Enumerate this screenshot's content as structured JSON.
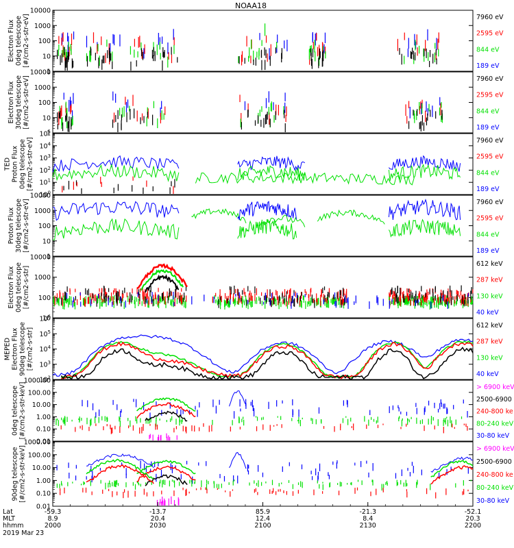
{
  "title": "NOAA18",
  "date_label": "2019 Mar 23",
  "x_axis": {
    "row_labels": [
      "Lat",
      "MLT",
      "hhmm"
    ],
    "ticks": [
      {
        "lat": "-59.3",
        "mlt": "8.9",
        "hhmm": "2000"
      },
      {
        "lat": "-13.7",
        "mlt": "20.4",
        "hhmm": "2030"
      },
      {
        "lat": "85.9",
        "mlt": "12.4",
        "hhmm": "2100"
      },
      {
        "lat": "-21.3",
        "mlt": "8.4",
        "hhmm": "2130"
      },
      {
        "lat": "-52.1",
        "mlt": "20.3",
        "hhmm": "2200"
      }
    ]
  },
  "colors": {
    "black": "#000000",
    "red": "#ff0000",
    "green": "#00e000",
    "blue": "#0000ff",
    "magenta": "#ff00ff"
  },
  "chart_data": [
    {
      "id": "ted-e-0",
      "type": "scatter",
      "ylabel": [
        "Electron Flux",
        "0deg telescope",
        "[#/cm2-s-str-eV]"
      ],
      "y_ticks": [
        "1",
        "10",
        "100",
        "1000",
        "10000"
      ],
      "ylim": [
        1,
        10000
      ],
      "log": true,
      "legend": [
        {
          "label": "7960 eV",
          "color": "black"
        },
        {
          "label": "2595 eV",
          "color": "red"
        },
        {
          "label": "844 eV",
          "color": "green"
        },
        {
          "label": "189 eV",
          "color": "blue"
        }
      ]
    },
    {
      "id": "ted-e-30",
      "type": "scatter",
      "ylabel": [
        "Electron Flux",
        "30deg telescope",
        "[#/cm2-s-str-eV]"
      ],
      "y_ticks": [
        "1",
        "10",
        "100",
        "1000",
        "10000"
      ],
      "ylim": [
        1,
        10000
      ],
      "log": true,
      "legend": [
        {
          "label": "7960 eV",
          "color": "black"
        },
        {
          "label": "2595 eV",
          "color": "red"
        },
        {
          "label": "844 eV",
          "color": "green"
        },
        {
          "label": "189 eV",
          "color": "blue"
        }
      ]
    },
    {
      "id": "ted-p-0",
      "type": "line",
      "ylabel": [
        "TED",
        "Proton Flux",
        "0deg telescope",
        "[#/cm2-s-str-eV]"
      ],
      "y_ticks": [
        "10^0",
        "10^1",
        "10^2",
        "10^3",
        "10^4",
        "10^5"
      ],
      "ylim": [
        1,
        100000
      ],
      "log": true,
      "legend": [
        {
          "label": "7960 eV",
          "color": "black"
        },
        {
          "label": "2595 eV",
          "color": "red"
        },
        {
          "label": "844 eV",
          "color": "green"
        },
        {
          "label": "189 eV",
          "color": "blue"
        }
      ]
    },
    {
      "id": "ted-p-30",
      "type": "line",
      "ylabel": [
        "Proton Flux",
        "30deg telescope",
        "[#/cm2-s-str-eV]"
      ],
      "y_ticks": [
        "1",
        "10",
        "100",
        "1000",
        "10000"
      ],
      "ylim": [
        1,
        10000
      ],
      "log": true,
      "legend": [
        {
          "label": "7960 eV",
          "color": "black"
        },
        {
          "label": "2595 eV",
          "color": "red"
        },
        {
          "label": "844 eV",
          "color": "green"
        },
        {
          "label": "189 eV",
          "color": "blue"
        }
      ]
    },
    {
      "id": "meped-e-0",
      "type": "line",
      "ylabel": [
        "Electron Flux",
        "0deg telescope",
        "[#/cm2-s-str]"
      ],
      "y_ticks": [
        "10",
        "100",
        "1000",
        "10000"
      ],
      "ylim": [
        10,
        10000
      ],
      "log": true,
      "legend": [
        {
          "label": "612 keV",
          "color": "black"
        },
        {
          "label": "287 keV",
          "color": "red"
        },
        {
          "label": "130 keV",
          "color": "green"
        },
        {
          "label": "40 keV",
          "color": "blue"
        }
      ]
    },
    {
      "id": "meped-e-90",
      "type": "line",
      "ylabel": [
        "MEPED",
        "Electron Flux",
        "90deg telescope",
        "[#/cm2-s-str]"
      ],
      "y_ticks": [
        "10^2",
        "10^3",
        "10^4",
        "10^5",
        "10^6"
      ],
      "ylim": [
        100,
        1000000
      ],
      "log": true,
      "legend": [
        {
          "label": "612 keV",
          "color": "black"
        },
        {
          "label": "287 keV",
          "color": "red"
        },
        {
          "label": "130 keV",
          "color": "green"
        },
        {
          "label": "40 keV",
          "color": "blue"
        }
      ]
    },
    {
      "id": "meped-p-0",
      "type": "scatter",
      "ylabel": [
        "0deg telescope",
        "[#/cm2-s-str-keV]"
      ],
      "y_ticks": [
        "0.01",
        "0.10",
        "1.00",
        "10.00",
        "100.00",
        "1000.00"
      ],
      "ylim": [
        0.01,
        1000
      ],
      "log": true,
      "legend": [
        {
          "label": "> 6900 keV",
          "color": "magenta"
        },
        {
          "label": "2500-6900",
          "color": "black"
        },
        {
          "label": "240-800 ke",
          "color": "red"
        },
        {
          "label": "80-240 keV",
          "color": "green"
        },
        {
          "label": "30-80 keV",
          "color": "blue"
        }
      ]
    },
    {
      "id": "meped-p-90",
      "type": "scatter",
      "ylabel": [
        "90deg telescope",
        "[#/cm2-s-str-keV]"
      ],
      "y_ticks": [
        "0.01",
        "0.10",
        "1.00",
        "10.00",
        "100.00",
        "1000.00"
      ],
      "ylim": [
        0.01,
        1000
      ],
      "log": true,
      "legend": [
        {
          "label": "> 6900 keV",
          "color": "magenta"
        },
        {
          "label": "2500-6900",
          "color": "black"
        },
        {
          "label": "240-800 ke",
          "color": "red"
        },
        {
          "label": "80-240 keV",
          "color": "green"
        },
        {
          "label": "30-80 keV",
          "color": "blue"
        }
      ]
    }
  ]
}
